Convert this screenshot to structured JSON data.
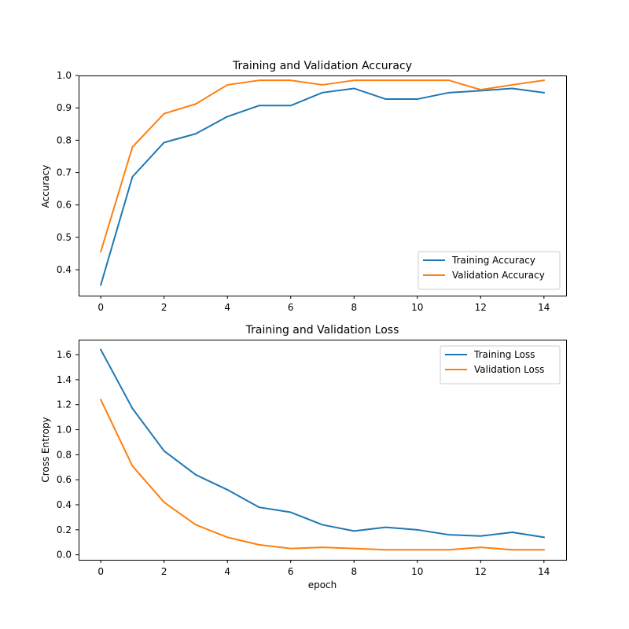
{
  "chart_data": [
    {
      "type": "line",
      "title": "Training and Validation Accuracy",
      "xlabel": "",
      "ylabel": "Accuracy",
      "xlim": [
        -0.7,
        14.7
      ],
      "ylim": [
        0.32,
        1.0
      ],
      "xticks": [
        0,
        2,
        4,
        6,
        8,
        10,
        12,
        14
      ],
      "yticks": [
        0.4,
        0.5,
        0.6,
        0.7,
        0.8,
        0.9,
        1.0
      ],
      "ytick_labels": [
        "0.4",
        "0.5",
        "0.6",
        "0.7",
        "0.8",
        "0.9",
        "1.0"
      ],
      "legend_position": "lower-right",
      "grid": false,
      "x": [
        0,
        1,
        2,
        3,
        4,
        5,
        6,
        7,
        8,
        9,
        10,
        11,
        12,
        13,
        14
      ],
      "series": [
        {
          "name": "Training Accuracy",
          "color": "#1f77b4",
          "values": [
            0.353,
            0.687,
            0.793,
            0.82,
            0.873,
            0.907,
            0.907,
            0.947,
            0.96,
            0.927,
            0.927,
            0.947,
            0.953,
            0.96,
            0.947
          ]
        },
        {
          "name": "Validation Accuracy",
          "color": "#ff7f0e",
          "values": [
            0.456,
            0.779,
            0.882,
            0.912,
            0.971,
            0.985,
            0.985,
            0.971,
            0.985,
            0.985,
            0.985,
            0.985,
            0.956,
            0.971,
            0.985
          ]
        }
      ]
    },
    {
      "type": "line",
      "title": "Training and Validation Loss",
      "xlabel": "epoch",
      "ylabel": "Cross Entropy",
      "xlim": [
        -0.7,
        14.7
      ],
      "ylim": [
        -0.04,
        1.72
      ],
      "xticks": [
        0,
        2,
        4,
        6,
        8,
        10,
        12,
        14
      ],
      "yticks": [
        0.0,
        0.2,
        0.4,
        0.6,
        0.8,
        1.0,
        1.2,
        1.4,
        1.6
      ],
      "ytick_labels": [
        "0.0",
        "0.2",
        "0.4",
        "0.6",
        "0.8",
        "1.0",
        "1.2",
        "1.4",
        "1.6"
      ],
      "legend_position": "upper-right",
      "grid": false,
      "x": [
        0,
        1,
        2,
        3,
        4,
        5,
        6,
        7,
        8,
        9,
        10,
        11,
        12,
        13,
        14
      ],
      "series": [
        {
          "name": "Training Loss",
          "color": "#1f77b4",
          "values": [
            1.64,
            1.17,
            0.83,
            0.64,
            0.52,
            0.38,
            0.34,
            0.24,
            0.19,
            0.22,
            0.2,
            0.16,
            0.15,
            0.18,
            0.14
          ]
        },
        {
          "name": "Validation Loss",
          "color": "#ff7f0e",
          "values": [
            1.24,
            0.71,
            0.42,
            0.24,
            0.14,
            0.08,
            0.05,
            0.06,
            0.05,
            0.04,
            0.04,
            0.04,
            0.06,
            0.04,
            0.04
          ]
        }
      ]
    }
  ]
}
